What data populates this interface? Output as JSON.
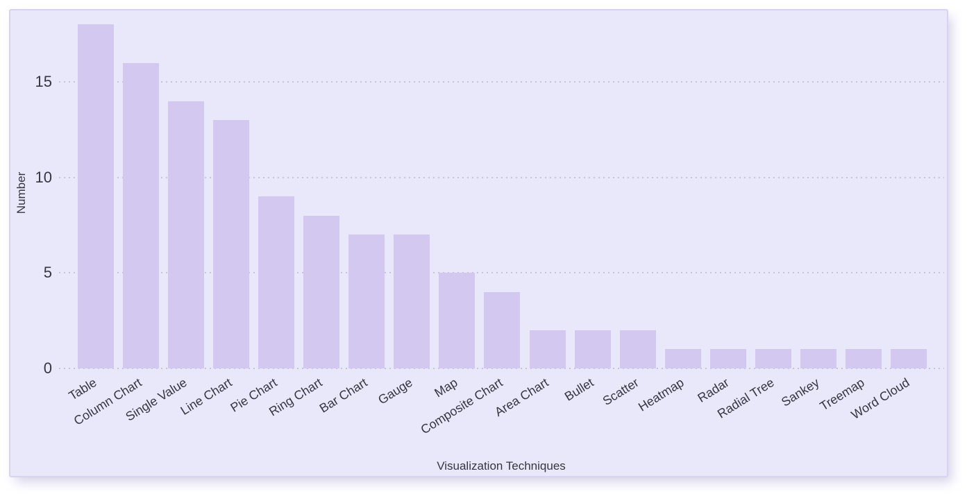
{
  "chart_data": {
    "type": "bar",
    "title": "",
    "xlabel": "Visualization Techniques",
    "ylabel": "Number",
    "categories": [
      "Table",
      "Column Chart",
      "Single Value",
      "Line Chart",
      "Pie Chart",
      "Ring Chart",
      "Bar Chart",
      "Gauge",
      "Map",
      "Composite Chart",
      "Area Chart",
      "Bullet",
      "Scatter",
      "Heatmap",
      "Radar",
      "Radial Tree",
      "Sankey",
      "Treemap",
      "Word Cloud"
    ],
    "values": [
      18,
      16,
      14,
      13,
      9,
      8,
      7,
      7,
      5,
      4,
      2,
      2,
      2,
      1,
      1,
      1,
      1,
      1,
      1
    ],
    "yticks": [
      0,
      5,
      10,
      15
    ],
    "ylim": [
      0,
      18.8
    ],
    "grid": "horizontal-dotted",
    "legend": "none",
    "colors": {
      "bar_fill": "#d3c9f0",
      "plot_background": "#e9e8fb",
      "card_border": "#d8d1f2",
      "grid_dot": "#c7c1d9",
      "text": "#37353f",
      "page_background": "#ffffff"
    }
  }
}
